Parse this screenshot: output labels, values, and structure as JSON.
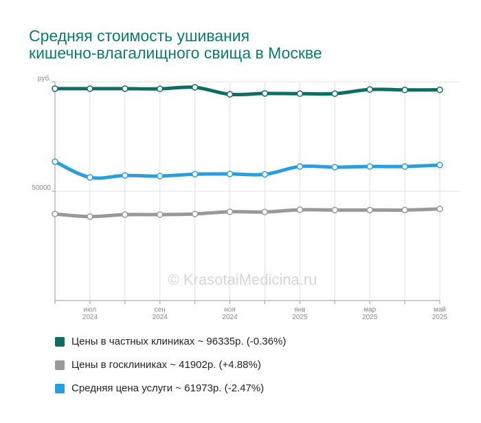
{
  "chart_data": {
    "type": "line",
    "title": [
      "Средняя стоимость ушивания",
      "кишечно-влагалищного свища в Москве"
    ],
    "watermark": "© KrasotaiMedicina.ru",
    "categories": [
      null,
      "июл 2024",
      null,
      "сен 2024",
      null,
      "ноя 2024",
      null,
      "янв 2025",
      null,
      "мар 2025",
      null,
      "май 2025"
    ],
    "series": [
      {
        "name": "Цены в частных клиниках ~ 96335р. (-0.36%)",
        "color": "#0e6e62",
        "values": [
          96900,
          96900,
          96900,
          96800,
          97500,
          94300,
          94700,
          94600,
          94600,
          96500,
          96300,
          96335
        ]
      },
      {
        "name": "Цены в госклиниках ~ 41902р. (+4.88%)",
        "color": "#999999",
        "values": [
          39600,
          38400,
          39300,
          39300,
          39600,
          40600,
          40500,
          41500,
          41400,
          41400,
          41400,
          41902
        ]
      },
      {
        "name": "Средняя цена услуги ~ 61973р. (-2.47%)",
        "color": "#2a9fdf",
        "values": [
          63500,
          56300,
          57200,
          56900,
          57800,
          57900,
          57700,
          61300,
          61000,
          61300,
          61300,
          61973
        ]
      }
    ],
    "ylim": [
      0,
      100000
    ],
    "yticks": [
      50000,
      {
        "value": 100000,
        "label": "руб."
      }
    ],
    "grid": true
  }
}
